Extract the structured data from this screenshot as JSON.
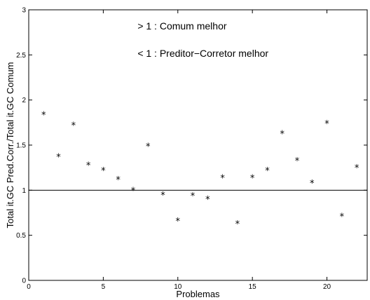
{
  "chart_data": {
    "type": "scatter",
    "xlabel": "Problemas",
    "ylabel": "Total it.GC Pred.Corr./Total it.GC Comum",
    "xlim": [
      0,
      22.7
    ],
    "ylim": [
      0,
      3
    ],
    "xticks": [
      0,
      5,
      10,
      15,
      20
    ],
    "yticks": [
      0,
      0.5,
      1,
      1.5,
      2,
      2.5,
      3
    ],
    "xtick_labels": [
      "0",
      "5",
      "10",
      "15",
      "20"
    ],
    "ytick_labels": [
      "0",
      "0.5",
      "1",
      "1.5",
      "2",
      "2.5",
      "3"
    ],
    "marker": "*",
    "reference_line": {
      "y": 1
    },
    "annotations": [
      {
        "text": "> 1 : Comum melhor",
        "x": 7.3,
        "y": 2.82
      },
      {
        "text": "< 1 : Preditor−Corretor melhor",
        "x": 7.3,
        "y": 2.52
      }
    ],
    "series": [
      {
        "x": [
          1,
          2,
          3,
          4,
          5,
          6,
          7,
          8,
          9,
          10,
          11,
          12,
          13,
          14,
          15,
          16,
          17,
          18,
          19,
          20,
          21,
          22
        ],
        "y": [
          1.84,
          1.37,
          1.72,
          1.28,
          1.22,
          1.12,
          1.0,
          1.49,
          0.95,
          0.66,
          0.94,
          0.9,
          1.14,
          0.63,
          1.14,
          1.22,
          1.63,
          1.33,
          1.08,
          1.74,
          0.71,
          1.25
        ]
      }
    ]
  }
}
